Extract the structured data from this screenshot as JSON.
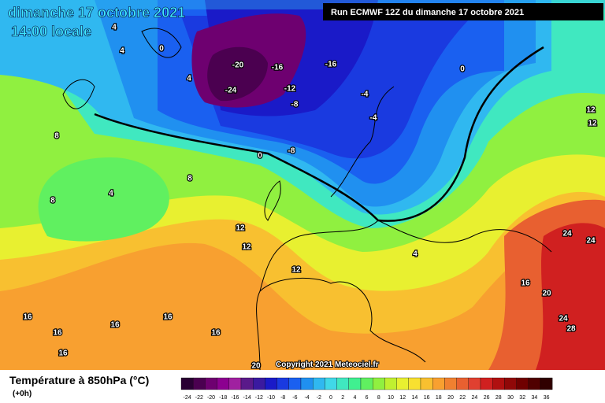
{
  "header": {
    "title": "dimanche 17 octobre 2021",
    "subtitle": "14:00 locale",
    "run": "Run ECMWF 12Z du dimanche 17 octobre 2021",
    "copyright": "Copyright 2021 Meteociel.fr"
  },
  "map": {
    "contour_labels": [
      "4",
      "4",
      "0",
      "4",
      "-20",
      "-16",
      "-16",
      "-24",
      "-12",
      "-8",
      "-4",
      "-4",
      "0",
      "8",
      "0",
      "-8",
      "4",
      "8",
      "8",
      "12",
      "12",
      "12",
      "12",
      "12",
      "4",
      "24",
      "24",
      "16",
      "20",
      "16",
      "16",
      "16",
      "16",
      "16",
      "16",
      "24",
      "28",
      "20"
    ]
  },
  "legend": {
    "title": "Température à 850hPa (°C)",
    "lead": "(+0h)",
    "labels": [
      -24,
      -22,
      -20,
      -18,
      -16,
      -14,
      -12,
      -10,
      -8,
      -6,
      -4,
      -2,
      0,
      2,
      4,
      6,
      8,
      10,
      12,
      14,
      16,
      18,
      20,
      22,
      24,
      26,
      28,
      30,
      32,
      34,
      36
    ],
    "colors": [
      "#2a0033",
      "#4b0050",
      "#6e0070",
      "#8c0090",
      "#a020a0",
      "#5a1a8a",
      "#3a1aa0",
      "#1a1ac8",
      "#1a3ae0",
      "#1a60f0",
      "#2090f0",
      "#30b8f0",
      "#40d8e8",
      "#40e8c0",
      "#40f090",
      "#60f060",
      "#90f040",
      "#c0f030",
      "#e8f030",
      "#f8e030",
      "#f8c030",
      "#f8a030",
      "#f08030",
      "#e86030",
      "#e04030",
      "#d02020",
      "#b01010",
      "#900808",
      "#700000",
      "#500000",
      "#300000"
    ]
  }
}
